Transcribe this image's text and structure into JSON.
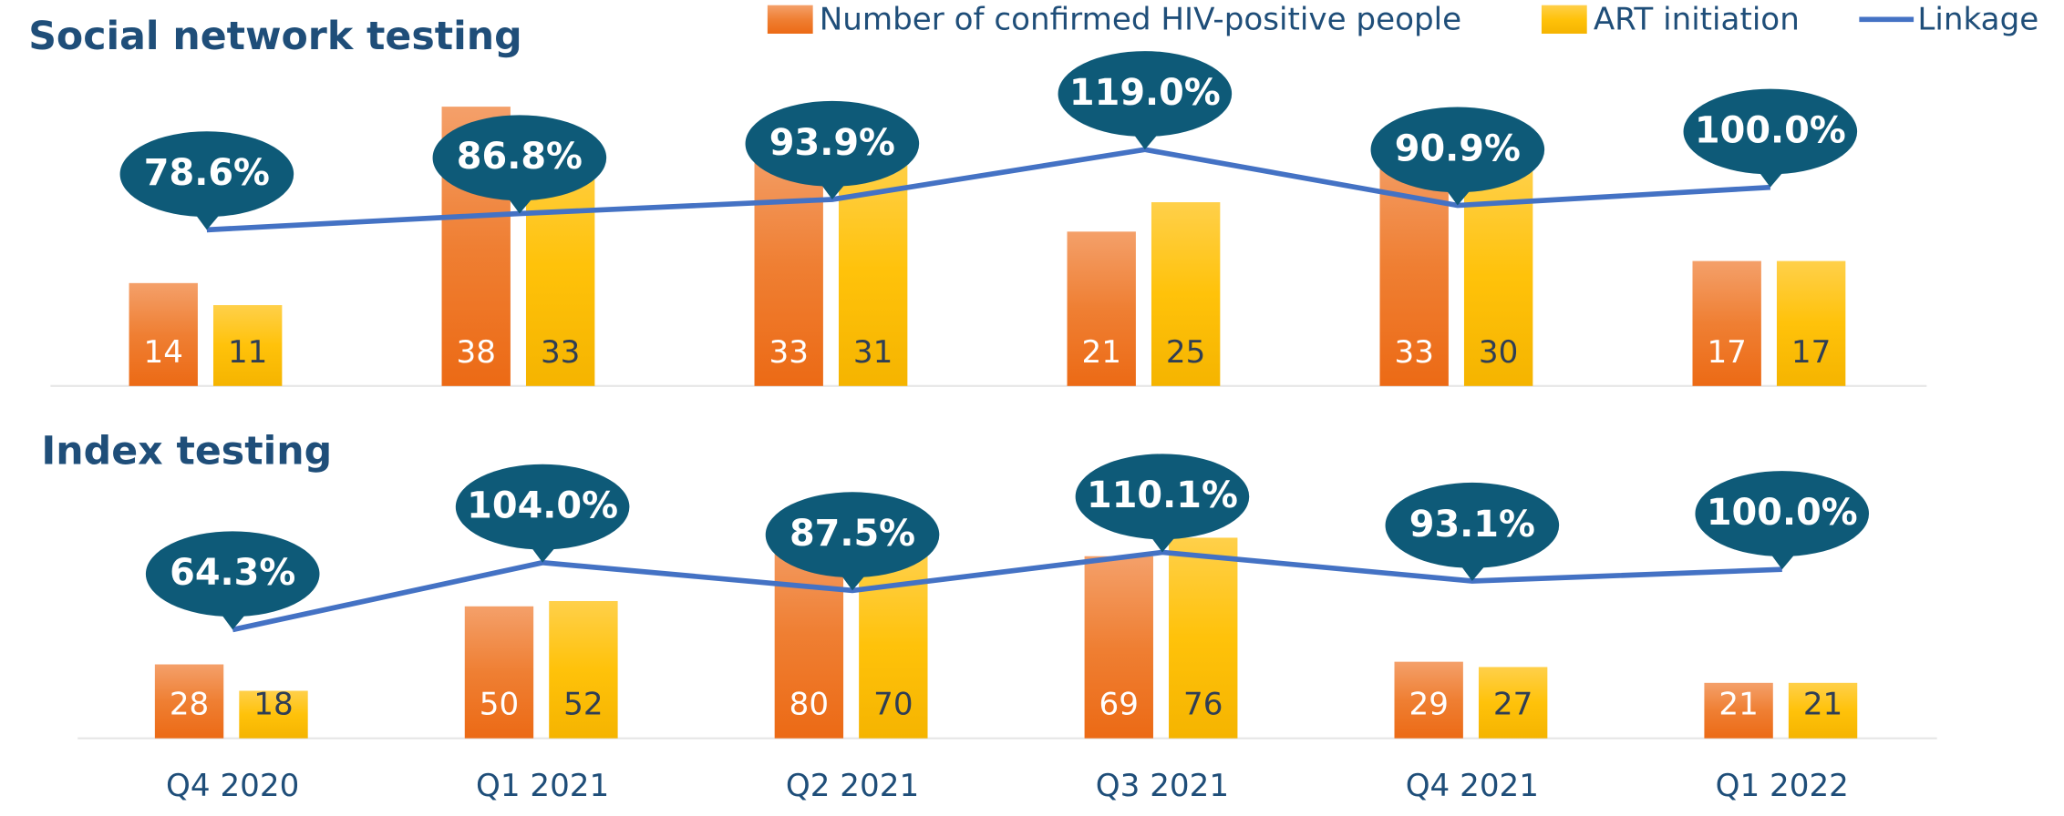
{
  "chart_data": [
    {
      "type": "bar",
      "title": "Social network testing",
      "series": [
        {
          "name": "Number of confirmed HIV-positive people",
          "color": "#ed7d31",
          "values": [
            14,
            38,
            33,
            21,
            33,
            17
          ]
        },
        {
          "name": "ART initiation",
          "color": "#ffc000",
          "values": [
            11,
            33,
            31,
            25,
            30,
            17
          ]
        },
        {
          "name": "Linkage",
          "color": "#4472c4",
          "type": "line",
          "axis": "y2",
          "values": [
            78.6,
            86.8,
            93.9,
            119.0,
            90.9,
            100.0
          ],
          "value_labels": [
            "78.6%",
            "86.8%",
            "93.9%",
            "119.0%",
            "90.9%",
            "100.0%"
          ]
        }
      ],
      "ylim": [
        0,
        40
      ],
      "y2lim": [
        0,
        148
      ]
    },
    {
      "type": "bar",
      "title": "Index testing",
      "categories": [
        "Q4 2020",
        "Q1 2021",
        "Q2 2021",
        "Q3 2021",
        "Q4 2021",
        "Q1 2022"
      ],
      "series": [
        {
          "color": "#ed7d31",
          "values": [
            28,
            50,
            80,
            69,
            29,
            21
          ]
        },
        {
          "color": "#ffc000",
          "values": [
            18,
            52,
            70,
            76,
            27,
            21
          ]
        },
        {
          "color": "#4472c4",
          "type": "line",
          "axis": "y2",
          "values": [
            64.3,
            104.0,
            87.5,
            110.1,
            93.1,
            100.0
          ],
          "value_labels": [
            "64.3%",
            "104.0%",
            "87.5%",
            "110.1%",
            "93.1%",
            "100.0%"
          ]
        }
      ],
      "ylim": [
        0,
        80
      ],
      "y2lim": [
        0,
        125
      ]
    }
  ]
}
